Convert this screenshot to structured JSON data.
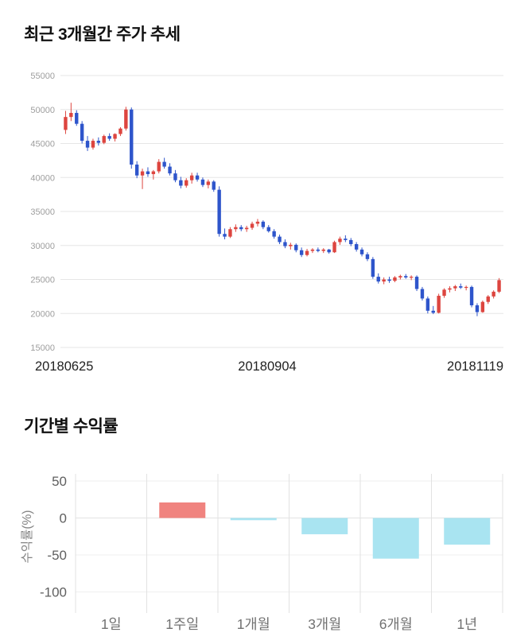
{
  "page": {
    "background": "#ffffff"
  },
  "chart_data": [
    {
      "type": "candlestick",
      "title": "최근 3개월간 주가 추세",
      "ylim": [
        15000,
        55000
      ],
      "y_ticks": [
        55000,
        50000,
        45000,
        40000,
        35000,
        30000,
        25000,
        20000,
        15000
      ],
      "x_labels": [
        "20180625",
        "20180904",
        "20181119"
      ],
      "up_color": "#dd453f",
      "down_color": "#2e55cb",
      "grid_color": "#e6e6e6",
      "axis_text_color": "#9e9e9e",
      "x_label_color": "#222222",
      "candles": [
        [
          47000,
          49800,
          46400,
          48900
        ],
        [
          48900,
          51000,
          48300,
          49500
        ],
        [
          49500,
          49900,
          47600,
          47900
        ],
        [
          47900,
          48300,
          45000,
          45400
        ],
        [
          45400,
          46100,
          43900,
          44400
        ],
        [
          44400,
          45700,
          44100,
          45400
        ],
        [
          45400,
          45900,
          44700,
          45100
        ],
        [
          45100,
          46300,
          44900,
          46100
        ],
        [
          46100,
          46500,
          45400,
          45700
        ],
        [
          45700,
          46500,
          45300,
          46400
        ],
        [
          46400,
          47400,
          46100,
          47200
        ],
        [
          47200,
          50400,
          46900,
          50000
        ],
        [
          50000,
          50300,
          41300,
          41900
        ],
        [
          41900,
          42400,
          39900,
          40300
        ],
        [
          40300,
          41300,
          38300,
          40900
        ],
        [
          40900,
          41500,
          40100,
          40500
        ],
        [
          40500,
          41100,
          39700,
          40900
        ],
        [
          40900,
          42700,
          40600,
          42300
        ],
        [
          42300,
          42900,
          41300,
          41600
        ],
        [
          41600,
          42100,
          40300,
          40600
        ],
        [
          40600,
          41100,
          39300,
          39600
        ],
        [
          39600,
          40100,
          38400,
          38800
        ],
        [
          38800,
          39900,
          38500,
          39600
        ],
        [
          39600,
          40700,
          39100,
          40300
        ],
        [
          40300,
          40700,
          39400,
          39700
        ],
        [
          39700,
          40000,
          38600,
          38900
        ],
        [
          38900,
          39700,
          38400,
          39400
        ],
        [
          39400,
          39600,
          37900,
          38200
        ],
        [
          38200,
          38700,
          31300,
          31700
        ],
        [
          31700,
          32500,
          30900,
          31300
        ],
        [
          31300,
          32700,
          31100,
          32400
        ],
        [
          32400,
          33100,
          32000,
          32700
        ],
        [
          32700,
          33000,
          32100,
          32400
        ],
        [
          32400,
          32900,
          32000,
          32600
        ],
        [
          32600,
          33500,
          32300,
          33200
        ],
        [
          33200,
          33900,
          32800,
          33500
        ],
        [
          33500,
          33700,
          32400,
          32700
        ],
        [
          32700,
          33000,
          31900,
          32100
        ],
        [
          32100,
          32400,
          31000,
          31300
        ],
        [
          31300,
          31600,
          30200,
          30500
        ],
        [
          30500,
          30900,
          29600,
          29900
        ],
        [
          29900,
          30400,
          29400,
          30100
        ],
        [
          30100,
          30300,
          29000,
          29300
        ],
        [
          29300,
          29700,
          28300,
          28600
        ],
        [
          28600,
          29500,
          28400,
          29200
        ],
        [
          29200,
          29600,
          28900,
          29400
        ],
        [
          29400,
          29700,
          29000,
          29200
        ],
        [
          29200,
          29600,
          28900,
          29400
        ],
        [
          29400,
          29500,
          28800,
          29000
        ],
        [
          29000,
          30700,
          28900,
          30500
        ],
        [
          30500,
          31300,
          30100,
          31000
        ],
        [
          31000,
          31500,
          30500,
          30800
        ],
        [
          30800,
          31100,
          29900,
          30200
        ],
        [
          30200,
          30500,
          29100,
          29400
        ],
        [
          29400,
          29700,
          28400,
          28700
        ],
        [
          28700,
          29000,
          27700,
          28000
        ],
        [
          28000,
          28300,
          25100,
          25400
        ],
        [
          25400,
          25900,
          24400,
          24700
        ],
        [
          24700,
          25300,
          24300,
          25000
        ],
        [
          25000,
          25400,
          24500,
          24800
        ],
        [
          24800,
          25500,
          24600,
          25300
        ],
        [
          25300,
          25700,
          25000,
          25500
        ],
        [
          25500,
          25800,
          25100,
          25300
        ],
        [
          25300,
          25600,
          24900,
          25400
        ],
        [
          25400,
          25600,
          23300,
          23600
        ],
        [
          23600,
          23900,
          21900,
          22200
        ],
        [
          22200,
          22500,
          20000,
          20400
        ],
        [
          20400,
          21100,
          19900,
          20100
        ],
        [
          20100,
          22900,
          20000,
          22600
        ],
        [
          22600,
          23700,
          22300,
          23500
        ],
        [
          23500,
          24000,
          23100,
          23700
        ],
        [
          23700,
          24200,
          23300,
          24000
        ],
        [
          24000,
          24400,
          23600,
          23800
        ],
        [
          23800,
          24100,
          23400,
          23900
        ],
        [
          23900,
          24100,
          20900,
          21200
        ],
        [
          21200,
          21500,
          19600,
          20200
        ],
        [
          20200,
          21900,
          20100,
          21700
        ],
        [
          21700,
          22700,
          21400,
          22500
        ],
        [
          22500,
          23400,
          22200,
          23200
        ],
        [
          23200,
          25200,
          23000,
          24900
        ]
      ]
    },
    {
      "type": "bar",
      "title": "기간별 수익률",
      "ylabel": "수익률(%)",
      "categories": [
        "1일",
        "1주일",
        "1개월",
        "3개월",
        "6개월",
        "1년"
      ],
      "values": [
        0,
        21,
        -3,
        -22,
        -55,
        -36
      ],
      "y_ticks": [
        50,
        0,
        -50,
        -100
      ],
      "ylim": [
        -100,
        50
      ],
      "positive_color": "#f0837f",
      "negative_color": "#a9e4f1",
      "grid_color": "#e2e2e2",
      "minor_grid_color": "#efefef",
      "tick_text_color": "#5f5f5f",
      "category_text_color": "#717171",
      "axis_title_color": "#848484"
    }
  ]
}
